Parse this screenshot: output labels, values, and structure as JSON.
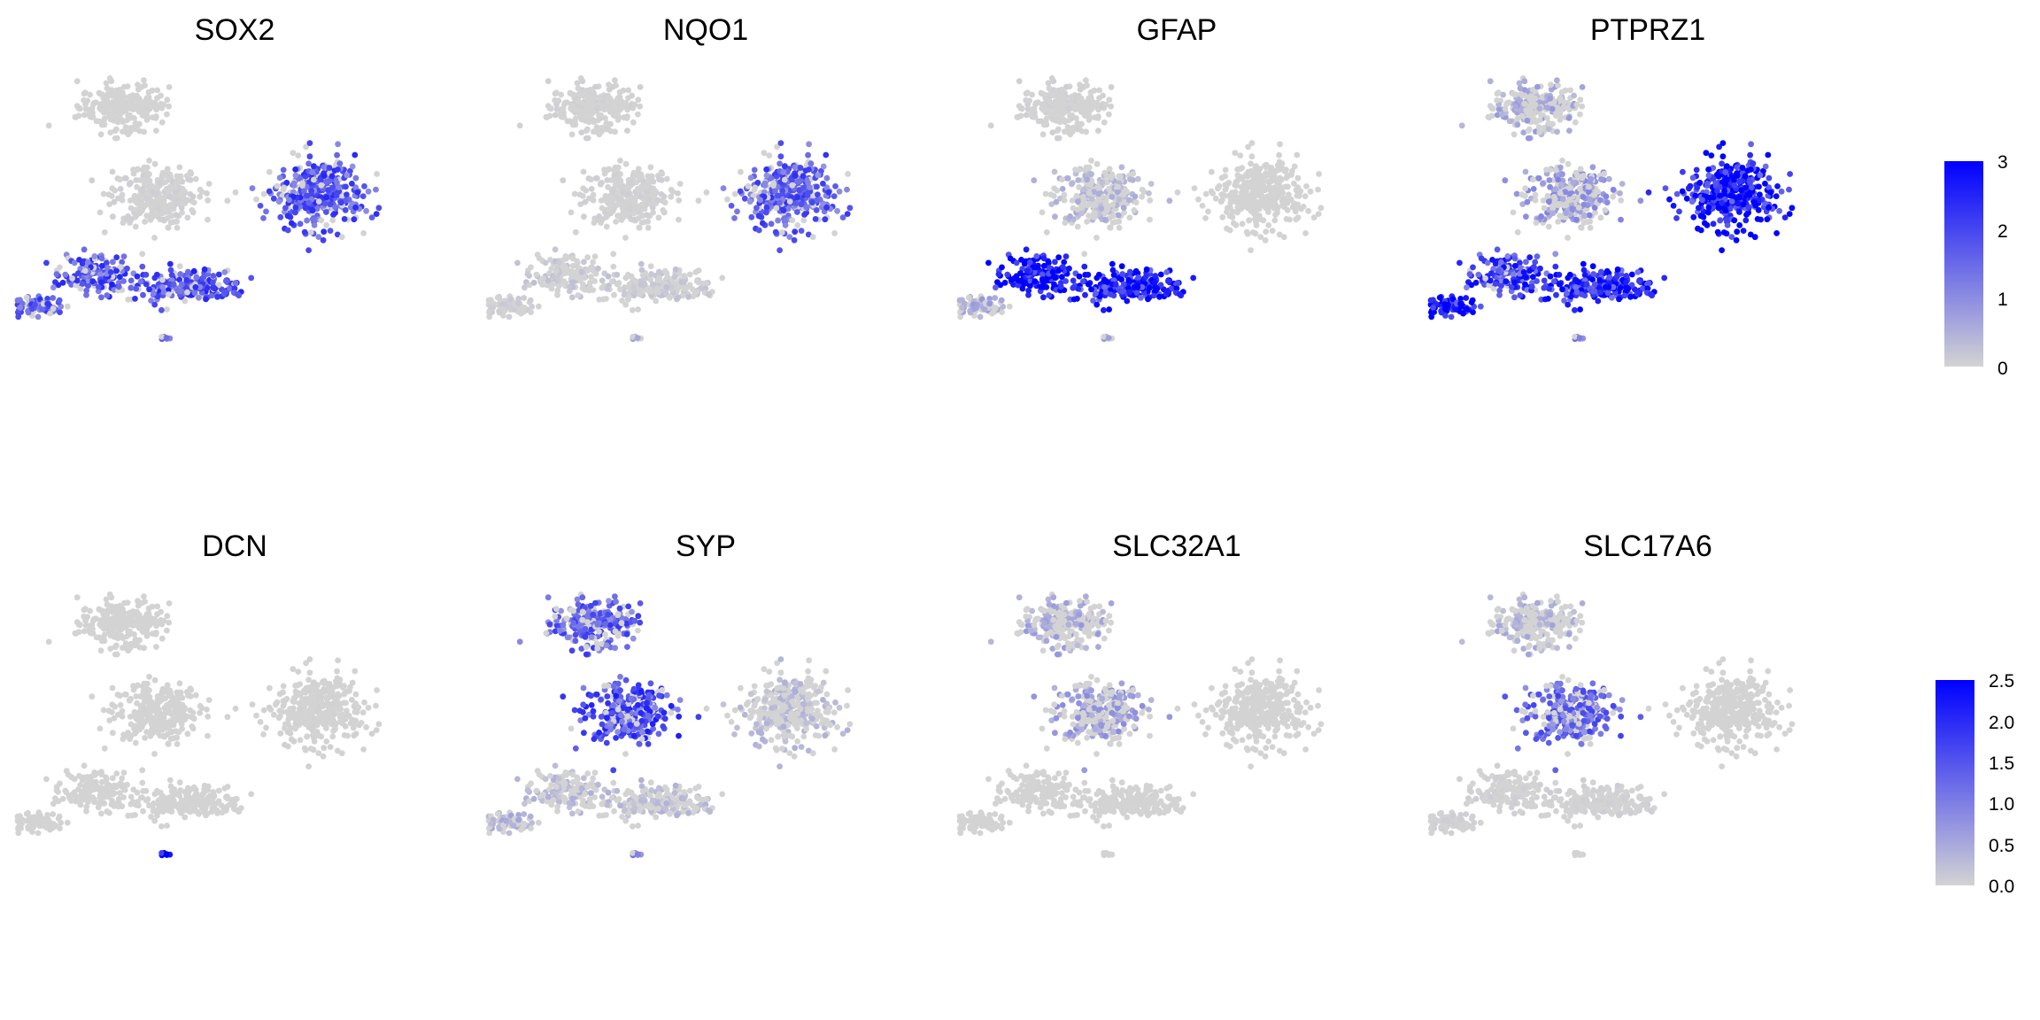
{
  "colors": {
    "low": "#d3d3d3",
    "high": "#0000ff",
    "background": "#ffffff"
  },
  "chart_data": {
    "type": "scatter",
    "description_type": "feature-plot-grid",
    "grid": false,
    "legend_placement": "right",
    "clusters": [
      {
        "id": "A",
        "cx": 0.24,
        "cy": 0.82,
        "spread": [
          0.1,
          0.08
        ],
        "n": 240
      },
      {
        "id": "B",
        "cx": 0.31,
        "cy": 0.52,
        "spread": [
          0.1,
          0.1
        ],
        "n": 300
      },
      {
        "id": "C",
        "cx": 0.68,
        "cy": 0.52,
        "spread": [
          0.1,
          0.12
        ],
        "n": 360
      },
      {
        "id": "D",
        "cx": 0.17,
        "cy": 0.25,
        "spread": [
          0.07,
          0.06
        ],
        "n": 150
      },
      {
        "id": "E",
        "cx": 0.05,
        "cy": 0.14,
        "spread": [
          0.06,
          0.03
        ],
        "n": 70
      },
      {
        "id": "F",
        "cx": 0.38,
        "cy": 0.21,
        "spread": [
          0.14,
          0.06
        ],
        "n": 220
      },
      {
        "id": "G",
        "cx": 0.33,
        "cy": 0.03,
        "spread": [
          0.01,
          0.01
        ],
        "n": 6
      }
    ],
    "rows": [
      {
        "legend": {
          "max": 3,
          "ticks": [
            "3",
            "2",
            "1",
            "0"
          ],
          "tick_values": [
            3,
            2,
            1,
            0
          ]
        },
        "panels": [
          {
            "gene": "SOX2",
            "cluster_expression": {
              "A": 0.0,
              "B": 0.05,
              "C": 1.7,
              "D": 1.7,
              "E": 1.6,
              "F": 1.8,
              "G": 1.2
            }
          },
          {
            "gene": "NQO1",
            "cluster_expression": {
              "A": 0.05,
              "B": 0.05,
              "C": 1.6,
              "D": 0.2,
              "E": 0.1,
              "F": 0.2,
              "G": 0.5
            }
          },
          {
            "gene": "GFAP",
            "cluster_expression": {
              "A": 0.05,
              "B": 0.4,
              "C": 0.0,
              "D": 3.0,
              "E": 0.6,
              "F": 2.6,
              "G": 0.6
            }
          },
          {
            "gene": "PTPRZ1",
            "cluster_expression": {
              "A": 0.6,
              "B": 0.8,
              "C": 2.6,
              "D": 2.0,
              "E": 2.9,
              "F": 2.4,
              "G": 1.0
            }
          }
        ]
      },
      {
        "legend": {
          "max": 2.5,
          "ticks": [
            "2.5",
            "2.0",
            "1.5",
            "1.0",
            "0.5",
            "0.0"
          ],
          "tick_values": [
            2.5,
            2.0,
            1.5,
            1.0,
            0.5,
            0.0
          ]
        },
        "panels": [
          {
            "gene": "DCN",
            "cluster_expression": {
              "A": 0.0,
              "B": 0.0,
              "C": 0.02,
              "D": 0.0,
              "E": 0.0,
              "F": 0.0,
              "G": 2.4
            }
          },
          {
            "gene": "SYP",
            "cluster_expression": {
              "A": 1.3,
              "B": 1.5,
              "C": 0.3,
              "D": 0.3,
              "E": 0.4,
              "F": 0.3,
              "G": 0.8
            }
          },
          {
            "gene": "SLC32A1",
            "cluster_expression": {
              "A": 0.5,
              "B": 0.6,
              "C": 0.0,
              "D": 0.0,
              "E": 0.0,
              "F": 0.0,
              "G": 0.0
            }
          },
          {
            "gene": "SLC17A6",
            "cluster_expression": {
              "A": 0.4,
              "B": 1.2,
              "C": 0.0,
              "D": 0.05,
              "E": 0.05,
              "F": 0.05,
              "G": 0.0
            }
          }
        ]
      }
    ]
  }
}
